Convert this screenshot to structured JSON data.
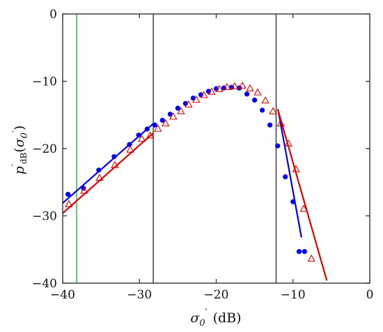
{
  "chart_data": {
    "type": "scatter",
    "xlabel": "σ′₀ (dB)",
    "ylabel": "p′dB(σ′₀)",
    "xlim": [
      -40,
      0
    ],
    "ylim": [
      -40,
      0
    ],
    "xticks": [
      "−40",
      "−30",
      "−20",
      "−10",
      "0"
    ],
    "yticks": [
      "0",
      "−10",
      "−20",
      "−30",
      "−40"
    ],
    "xtick_values": [
      -40,
      -30,
      -20,
      -10,
      0
    ],
    "ytick_values": [
      0,
      -10,
      -20,
      -30,
      -40
    ],
    "grid": false,
    "colors": {
      "blue": "#0000ee",
      "red": "#e00000",
      "green": "#00dd00",
      "vline": "#333333"
    },
    "series": [
      {
        "marker": "filled-circle",
        "color": "#0000ee",
        "x": [
          -39.3,
          -37.3,
          -35.3,
          -33.3,
          -31.3,
          -30.1,
          -29.0,
          -28.0,
          -27.0,
          -26.0,
          -25.0,
          -24.0,
          -23.0,
          -22.0,
          -21.0,
          -20.0,
          -19.0,
          -18.0,
          -17.0,
          -16.0,
          -15.0,
          -14.0,
          -13.0,
          -12.0,
          -11.0,
          -10.0,
          -9.2,
          -8.5
        ],
        "y": [
          -26.8,
          -25.9,
          -23.2,
          -21.2,
          -19.4,
          -18.0,
          -17.1,
          -16.5,
          -15.8,
          -14.9,
          -14.0,
          -13.3,
          -12.5,
          -12.0,
          -11.5,
          -11.1,
          -11.0,
          -10.9,
          -11.0,
          -11.9,
          -12.8,
          -14.3,
          -16.5,
          -19.6,
          -24.2,
          -27.9,
          -35.3,
          -35.3
        ]
      },
      {
        "marker": "open-triangle",
        "color": "#e00000",
        "x": [
          -39.2,
          -37.2,
          -35.2,
          -33.2,
          -31.2,
          -29.7,
          -28.6,
          -27.6,
          -26.6,
          -25.6,
          -24.6,
          -23.6,
          -22.6,
          -21.6,
          -20.6,
          -19.6,
          -18.6,
          -17.6,
          -16.6,
          -15.6,
          -14.6,
          -13.6,
          -12.6,
          -11.6,
          -10.6,
          -9.6,
          -8.6,
          -7.6
        ],
        "y": [
          -28.3,
          -26.3,
          -24.4,
          -22.5,
          -20.2,
          -18.6,
          -18.1,
          -17.1,
          -16.3,
          -15.3,
          -14.5,
          -13.5,
          -12.8,
          -12.1,
          -11.6,
          -11.2,
          -10.9,
          -10.8,
          -10.7,
          -11.1,
          -11.7,
          -12.9,
          -14.5,
          -16.3,
          -19.3,
          -23.1,
          -29.0,
          -36.4
        ]
      }
    ],
    "fit_lines": [
      {
        "color": "#0000ee",
        "x": [
          -40,
          -28.2
        ],
        "y": [
          -28.1,
          -16.3
        ]
      },
      {
        "color": "#e00000",
        "x": [
          -40,
          -28.2
        ],
        "y": [
          -29.6,
          -17.7
        ]
      },
      {
        "color": "#0000ee",
        "x": [
          -11.9,
          -8.9
        ],
        "y": [
          -14.5,
          -33.2
        ]
      },
      {
        "color": "#e00000",
        "x": [
          -12.0,
          -5.6
        ],
        "y": [
          -14.1,
          -39.6
        ]
      }
    ],
    "vertical_lines": [
      {
        "x": -38.2,
        "color": "#00dd00"
      },
      {
        "x": -28.2,
        "color": "#333333"
      },
      {
        "x": -12.2,
        "color": "#333333"
      }
    ]
  }
}
